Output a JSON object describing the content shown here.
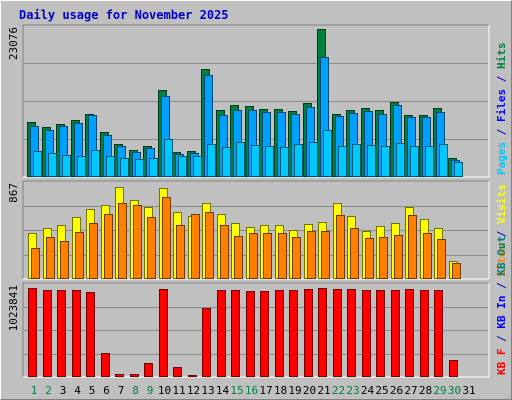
{
  "title": "Daily usage for November 2025",
  "colors": {
    "hits": "#008040",
    "files": "#00a0ff",
    "pages": "#00c8ff",
    "visits": "#ffff00",
    "sites": "#ff8000",
    "kbin": "#0000ff",
    "kbout": "#008080",
    "kbf": "#ff0000",
    "background": "#c0c0c0",
    "panel": "#c0c0c0",
    "grid": "#8c8c8c",
    "weekend": "#008040",
    "weekday": "#0000c8"
  },
  "chart_data": [
    {
      "type": "bar",
      "title": "Daily usage for November 2025",
      "panel": "top",
      "scale_label": "23076",
      "ylim": [
        0,
        23076
      ],
      "grid": true,
      "legend": [
        {
          "text": "Pages",
          "color": "#00c8ff"
        },
        {
          "text": " / ",
          "color": "#0000c8"
        },
        {
          "text": "Files",
          "color": "#0000ff"
        },
        {
          "text": " / ",
          "color": "#0000c8"
        },
        {
          "text": "Hits",
          "color": "#008040"
        }
      ],
      "categories": [
        "1",
        "2",
        "3",
        "4",
        "5",
        "6",
        "7",
        "8",
        "9",
        "10",
        "11",
        "12",
        "13",
        "14",
        "15",
        "16",
        "17",
        "18",
        "19",
        "20",
        "21",
        "22",
        "23",
        "24",
        "25",
        "26",
        "27",
        "28",
        "29",
        "30",
        "31"
      ],
      "series": [
        {
          "name": "Hits",
          "values": [
            8500,
            7800,
            8300,
            8900,
            9900,
            7000,
            5200,
            4200,
            4800,
            13600,
            3900,
            4100,
            16800,
            10400,
            11200,
            11100,
            10600,
            10600,
            10300,
            11600,
            23076,
            9800,
            10400,
            10800,
            10500,
            11700,
            9600,
            9700,
            10700,
            2900,
            0
          ]
        },
        {
          "name": "Files",
          "values": [
            8000,
            7400,
            7900,
            8400,
            9600,
            6600,
            4800,
            3900,
            4500,
            12600,
            3600,
            3800,
            15900,
            9600,
            10500,
            10500,
            10100,
            10100,
            9800,
            10900,
            18700,
            9500,
            10000,
            10300,
            9800,
            11300,
            9400,
            9400,
            10200,
            2700,
            0
          ]
        },
        {
          "name": "Pages",
          "values": [
            4100,
            3700,
            3500,
            3200,
            4200,
            3300,
            3000,
            2800,
            3000,
            5900,
            3300,
            3200,
            5100,
            4600,
            5400,
            5000,
            4900,
            4700,
            5200,
            5500,
            7300,
            4800,
            5100,
            5000,
            4900,
            5300,
            4800,
            4900,
            5100,
            2300,
            0
          ]
        }
      ]
    },
    {
      "type": "bar",
      "panel": "middle",
      "scale_label": "867",
      "ylim": [
        0,
        867
      ],
      "grid": true,
      "legend": [
        {
          "text": "Sites",
          "color": "#ff8000"
        },
        {
          "text": " / ",
          "color": "#0000c8"
        },
        {
          "text": "Visits",
          "color": "#ffff00"
        }
      ],
      "categories": [
        "1",
        "2",
        "3",
        "4",
        "5",
        "6",
        "7",
        "8",
        "9",
        "10",
        "11",
        "12",
        "13",
        "14",
        "15",
        "16",
        "17",
        "18",
        "19",
        "20",
        "21",
        "22",
        "23",
        "24",
        "25",
        "26",
        "27",
        "28",
        "29",
        "30",
        "31"
      ],
      "series": [
        {
          "name": "Visits",
          "values": [
            420,
            470,
            500,
            570,
            650,
            680,
            850,
            730,
            660,
            840,
            620,
            580,
            700,
            600,
            520,
            480,
            500,
            500,
            450,
            510,
            530,
            700,
            580,
            440,
            490,
            520,
            660,
            550,
            470,
            170,
            0
          ]
        },
        {
          "name": "Sites",
          "values": [
            290,
            390,
            350,
            430,
            520,
            600,
            700,
            680,
            570,
            760,
            500,
            600,
            620,
            500,
            400,
            420,
            420,
            420,
            390,
            440,
            440,
            590,
            470,
            380,
            390,
            410,
            590,
            420,
            370,
            150,
            0
          ]
        }
      ]
    },
    {
      "type": "bar",
      "panel": "bottom",
      "scale_label": "1023841",
      "ylim": [
        0,
        1023841
      ],
      "grid": true,
      "legend": [
        {
          "text": "KB F",
          "color": "#ff0000"
        },
        {
          "text": " / ",
          "color": "#0000c8"
        },
        {
          "text": "KB In",
          "color": "#0000ff"
        },
        {
          "text": " / ",
          "color": "#0000c8"
        },
        {
          "text": "KB Out",
          "color": "#008080"
        }
      ],
      "categories": [
        "1",
        "2",
        "3",
        "4",
        "5",
        "6",
        "7",
        "8",
        "9",
        "10",
        "11",
        "12",
        "13",
        "14",
        "15",
        "16",
        "17",
        "18",
        "19",
        "20",
        "21",
        "22",
        "23",
        "24",
        "25",
        "26",
        "27",
        "28",
        "29",
        "30",
        "31"
      ],
      "series": [
        {
          "name": "KB F",
          "values": [
            1010000,
            990000,
            990000,
            990000,
            970000,
            270000,
            30000,
            30000,
            160000,
            1000000,
            110000,
            20000,
            790000,
            990000,
            990000,
            980000,
            980000,
            990000,
            990000,
            1000000,
            1010000,
            1000000,
            1000000,
            990000,
            990000,
            990000,
            1000000,
            990000,
            990000,
            190000,
            0
          ]
        }
      ]
    }
  ],
  "x_labels": {
    "days": [
      "1",
      "2",
      "3",
      "4",
      "5",
      "6",
      "7",
      "8",
      "9",
      "10",
      "11",
      "12",
      "13",
      "14",
      "15",
      "16",
      "17",
      "18",
      "19",
      "20",
      "21",
      "22",
      "23",
      "24",
      "25",
      "26",
      "27",
      "28",
      "29",
      "30",
      "31"
    ],
    "weekend": [
      1,
      2,
      8,
      9,
      15,
      16,
      22,
      23,
      29,
      30
    ]
  }
}
